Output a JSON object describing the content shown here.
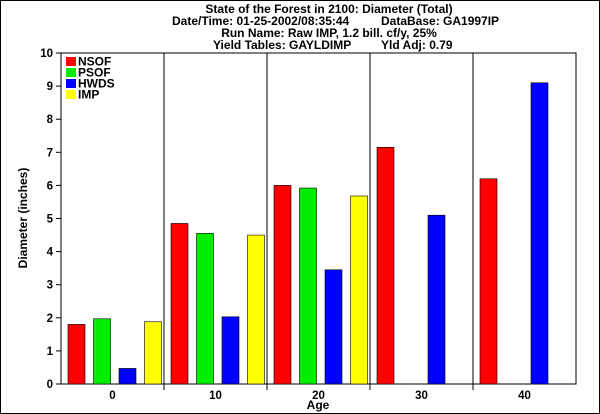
{
  "header": {
    "title": "State of the Forest in 2100: Diameter (Total)",
    "datetime": "Date/Time: 01-25-2002/08:35:44",
    "database": "DataBase: GA1997IP",
    "run_name": "Run Name: Raw IMP, 1.2 bill. cf/y, 25%",
    "yield_tables": "Yield Tables: GAYLDIMP",
    "yld_adj": "Yld Adj: 0.79"
  },
  "chart_data": {
    "type": "bar",
    "xlabel": "Age",
    "ylabel": "Diameter (inches)",
    "ylim": [
      0,
      10
    ],
    "yticks": [
      "0",
      "1",
      "2",
      "3",
      "4",
      "5",
      "6",
      "7",
      "8",
      "9",
      "10"
    ],
    "categories": [
      "0",
      "10",
      "20",
      "30",
      "40"
    ],
    "legend_position": "top-left",
    "grid": false,
    "series": [
      {
        "name": "NSOF",
        "color": "#ff0000",
        "values": [
          1.8,
          4.85,
          6.0,
          7.15,
          6.2
        ]
      },
      {
        "name": "PSOF",
        "color": "#00ee00",
        "values": [
          1.97,
          4.55,
          5.92,
          null,
          null
        ]
      },
      {
        "name": "HWDS",
        "color": "#0000ff",
        "values": [
          0.47,
          2.03,
          3.45,
          5.1,
          9.1
        ]
      },
      {
        "name": "IMP",
        "color": "#ffff00",
        "values": [
          1.88,
          4.5,
          5.68,
          null,
          null
        ]
      }
    ]
  }
}
